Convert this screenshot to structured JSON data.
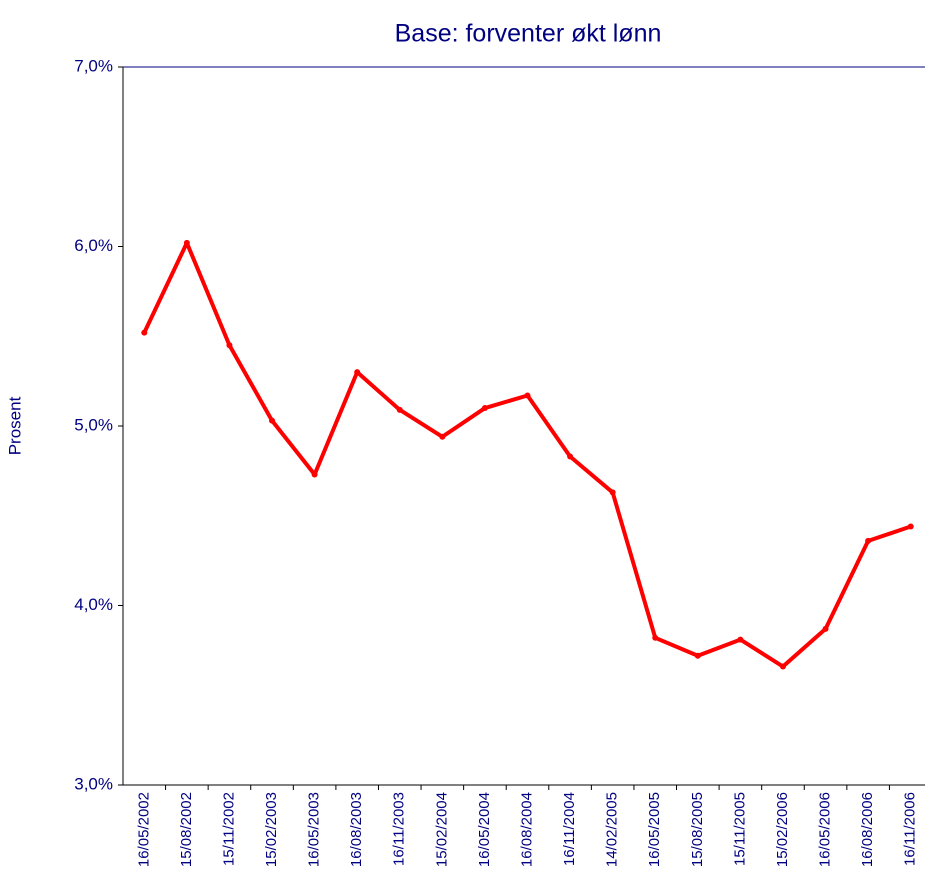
{
  "chart_data": {
    "type": "line",
    "title": "Base: forventer økt lønn",
    "y_label": "Prosent",
    "categories": [
      "16/05/2002",
      "15/08/2002",
      "15/11/2002",
      "15/02/2003",
      "16/05/2003",
      "16/08/2003",
      "16/11/2003",
      "15/02/2004",
      "16/05/2004",
      "16/08/2004",
      "16/11/2004",
      "14/02/2005",
      "16/05/2005",
      "15/08/2005",
      "15/11/2005",
      "15/02/2006",
      "16/05/2006",
      "16/08/2006",
      "16/11/2006"
    ],
    "series": [
      {
        "name": "Base",
        "color": "#ff0000",
        "values": [
          5.52,
          6.02,
          5.45,
          5.03,
          4.73,
          5.3,
          5.09,
          4.94,
          5.1,
          5.17,
          4.83,
          4.63,
          3.82,
          3.72,
          3.81,
          3.66,
          3.87,
          4.36,
          4.44
        ]
      }
    ],
    "ylim": [
      3,
      7
    ],
    "yticks": [
      {
        "value": 3,
        "label": "3,0%"
      },
      {
        "value": 4,
        "label": "4,0%"
      },
      {
        "value": 5,
        "label": "5,0%"
      },
      {
        "value": 6,
        "label": "6,0%"
      },
      {
        "value": 7,
        "label": "7,0%"
      }
    ],
    "grid": false
  }
}
